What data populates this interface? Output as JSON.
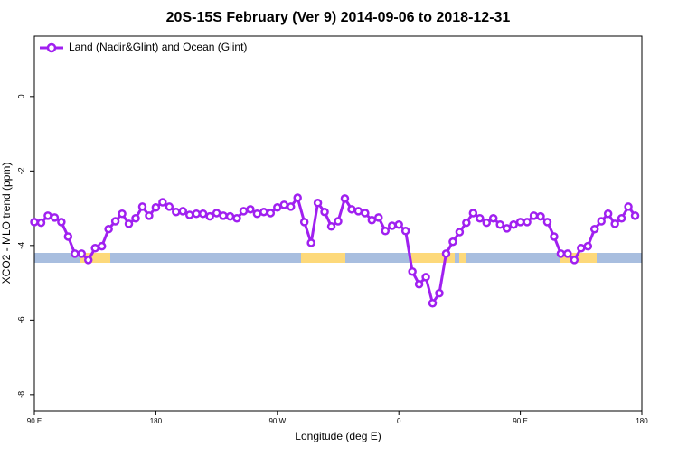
{
  "chart_data": {
    "type": "line",
    "title": "20S-15S February (Ver 9)   2014-09-06 to 2018-12-31",
    "x_label": "Longitude (deg E)",
    "y_label": "XCO2 - MLO trend (ppm)",
    "xlim": [
      90,
      540
    ],
    "ylim": [
      -8.44,
      1.62
    ],
    "xticks": [
      {
        "value": 90,
        "label": "90 E"
      },
      {
        "value": 180,
        "label": "180"
      },
      {
        "value": 270,
        "label": "90 W"
      },
      {
        "value": 360,
        "label": "0"
      },
      {
        "value": 450,
        "label": "90 E"
      },
      {
        "value": 540,
        "label": "180"
      }
    ],
    "yticks": [
      0,
      -2,
      -4,
      -6,
      -8
    ],
    "legend": "upper left",
    "x": [
      90,
      95,
      100,
      105,
      110,
      115,
      120,
      125,
      130,
      135,
      140,
      145,
      150,
      155,
      160,
      165,
      170,
      175,
      180,
      185,
      190,
      195,
      200,
      205,
      210,
      215,
      220,
      225,
      230,
      235,
      240,
      245,
      250,
      255,
      260,
      265,
      270,
      275,
      280,
      285,
      290,
      295,
      300,
      305,
      310,
      315,
      320,
      325,
      330,
      335,
      340,
      345,
      350,
      355,
      360,
      365,
      370,
      375,
      380,
      385,
      390,
      395,
      400,
      405,
      410,
      415,
      420,
      425,
      430,
      435,
      440,
      445,
      450,
      455,
      460,
      465,
      470,
      475,
      480,
      485,
      490,
      495,
      500,
      505,
      510,
      515,
      520,
      525,
      530,
      535
    ],
    "series": [
      {
        "name": "Land (Nadir&Glint) and Ocean (Glint)",
        "color": "#a020f0",
        "values": [
          -3.37,
          -3.39,
          -3.2,
          -3.25,
          -3.37,
          -3.76,
          -4.22,
          -4.22,
          -4.39,
          -4.07,
          -4.02,
          -3.56,
          -3.35,
          -3.15,
          -3.42,
          -3.27,
          -2.96,
          -3.2,
          -2.98,
          -2.84,
          -2.96,
          -3.1,
          -3.08,
          -3.18,
          -3.15,
          -3.15,
          -3.22,
          -3.13,
          -3.2,
          -3.22,
          -3.27,
          -3.08,
          -3.03,
          -3.15,
          -3.1,
          -3.13,
          -2.98,
          -2.91,
          -2.96,
          -2.72,
          -3.37,
          -3.93,
          -2.86,
          -3.1,
          -3.49,
          -3.35,
          -2.74,
          -3.03,
          -3.08,
          -3.13,
          -3.32,
          -3.25,
          -3.61,
          -3.47,
          -3.44,
          -3.61,
          -4.7,
          -5.04,
          -4.85,
          -5.55,
          -5.28,
          -4.22,
          -3.9,
          -3.64,
          -3.39,
          -3.13,
          -3.27,
          -3.39,
          -3.27,
          -3.44,
          -3.54,
          -3.44,
          -3.37,
          -3.37,
          -3.2,
          -3.22,
          -3.37,
          -3.76,
          -4.22,
          -4.22,
          -4.39,
          -4.07,
          -4.02,
          -3.56,
          -3.35,
          -3.15,
          -3.42,
          -3.27,
          -2.96,
          -3.2
        ]
      }
    ]
  }
}
